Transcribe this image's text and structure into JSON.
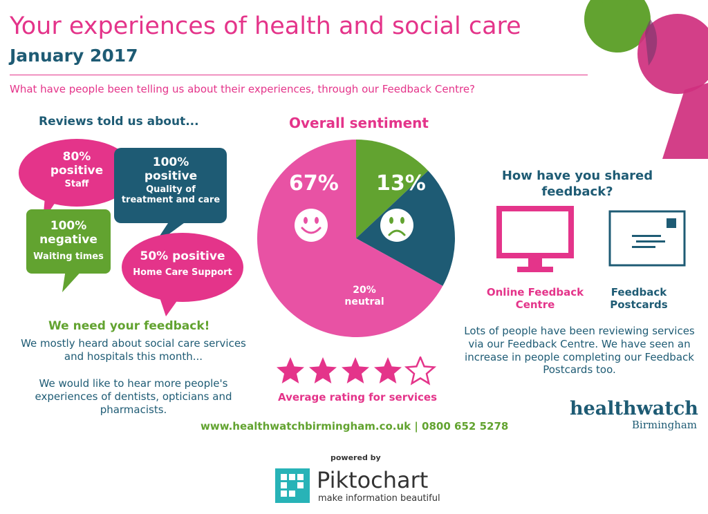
{
  "header": {
    "title": "Your experiences of health and social care",
    "date": "January 2017",
    "question": "What have people been telling us about their experiences, through our Feedback Centre?"
  },
  "reviews": {
    "heading": "Reviews told us about...",
    "bubbles": [
      {
        "value": "80%",
        "qualifier": "positive",
        "topic": "Staff",
        "color": "#e4348a"
      },
      {
        "value": "100%",
        "qualifier": "positive",
        "topic": "Quality of treatment and care",
        "color": "#1e5b74"
      },
      {
        "value": "100%",
        "qualifier": "negative",
        "topic": "Waiting times",
        "color": "#62a330"
      },
      {
        "value": "50% positive",
        "qualifier": "",
        "topic": "Home Care Support",
        "color": "#e4348a"
      }
    ]
  },
  "feedback_call": {
    "heading": "We need your feedback!",
    "paragraph1": "We mostly heard about social care services and hospitals this month...",
    "paragraph2": "We would like to hear more people's experiences of dentists, opticians and pharmacists."
  },
  "sentiment": {
    "heading": "Overall sentiment",
    "rating_label": "Average rating for services",
    "rating": 4,
    "rating_max": 5
  },
  "chart_data": {
    "type": "pie",
    "title": "Overall sentiment",
    "slices": [
      {
        "label": "67%",
        "value": 67,
        "color": "#e852a4",
        "icon": "smiley-face-icon"
      },
      {
        "label": "13%",
        "value": 13,
        "color": "#62a330",
        "icon": "sad-face-icon"
      },
      {
        "label": "20% neutral",
        "value": 20,
        "color": "#1e5b74"
      }
    ]
  },
  "shared": {
    "heading": "How have you shared feedback?",
    "channels": [
      {
        "label": "Online Feedback Centre",
        "icon": "monitor-icon",
        "color": "#e4348a"
      },
      {
        "label": "Feedback Postcards",
        "icon": "postcard-icon",
        "color": "#1e5b74"
      }
    ],
    "paragraph": "Lots of people have been reviewing services via our Feedback Centre. We have seen an increase in people completing our Feedback Postcards too."
  },
  "footer": {
    "contact": "www.healthwatchbirmingham.co.uk | 0800 652 5278",
    "logo_main": "healthwatch",
    "logo_sub": "Birmingham",
    "powered_by": "powered by",
    "piktochart_name": "Piktochart",
    "piktochart_tagline": "make information beautiful"
  },
  "colors": {
    "pink": "#e4348a",
    "teal": "#1e5b74",
    "green": "#62a330"
  }
}
